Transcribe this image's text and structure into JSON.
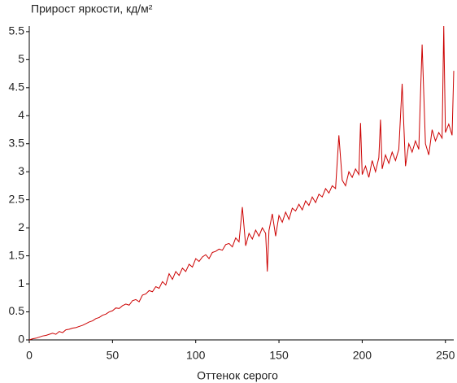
{
  "chart_data": {
    "type": "line",
    "title": "Прирост яркости, кд/м²",
    "x_label": "Оттенок серого",
    "x": [
      0,
      2,
      4,
      6,
      8,
      10,
      12,
      14,
      16,
      18,
      20,
      22,
      24,
      26,
      28,
      30,
      32,
      34,
      36,
      38,
      40,
      42,
      44,
      46,
      48,
      50,
      52,
      54,
      56,
      58,
      60,
      62,
      64,
      66,
      68,
      70,
      72,
      74,
      76,
      78,
      80,
      82,
      84,
      86,
      88,
      90,
      92,
      94,
      96,
      98,
      100,
      102,
      104,
      106,
      108,
      110,
      112,
      114,
      116,
      118,
      120,
      122,
      124,
      126,
      128,
      130,
      132,
      134,
      136,
      138,
      140,
      142,
      143,
      144,
      146,
      148,
      150,
      152,
      154,
      156,
      158,
      160,
      162,
      164,
      166,
      168,
      170,
      172,
      174,
      176,
      178,
      180,
      182,
      184,
      186,
      188,
      190,
      192,
      194,
      196,
      198,
      199,
      200,
      202,
      204,
      206,
      208,
      210,
      211,
      212,
      214,
      216,
      218,
      220,
      222,
      224,
      226,
      228,
      230,
      232,
      234,
      235,
      236,
      238,
      240,
      242,
      244,
      246,
      248,
      249,
      250,
      252,
      254,
      255
    ],
    "series": [
      {
        "name": null,
        "color": "#cc0000",
        "values": [
          0.0,
          0.02,
          0.03,
          0.05,
          0.07,
          0.08,
          0.1,
          0.12,
          0.1,
          0.15,
          0.13,
          0.18,
          0.19,
          0.21,
          0.22,
          0.24,
          0.26,
          0.29,
          0.32,
          0.34,
          0.38,
          0.4,
          0.44,
          0.46,
          0.5,
          0.52,
          0.57,
          0.56,
          0.61,
          0.64,
          0.62,
          0.7,
          0.72,
          0.68,
          0.8,
          0.82,
          0.88,
          0.86,
          0.95,
          0.92,
          1.04,
          0.98,
          1.18,
          1.08,
          1.22,
          1.15,
          1.28,
          1.22,
          1.35,
          1.3,
          1.45,
          1.4,
          1.48,
          1.52,
          1.45,
          1.56,
          1.58,
          1.62,
          1.6,
          1.7,
          1.72,
          1.66,
          1.82,
          1.75,
          2.37,
          1.68,
          1.9,
          1.8,
          1.96,
          1.85,
          2.0,
          1.9,
          1.22,
          1.95,
          2.25,
          1.85,
          2.22,
          2.1,
          2.28,
          2.15,
          2.35,
          2.3,
          2.42,
          2.32,
          2.48,
          2.4,
          2.55,
          2.45,
          2.6,
          2.55,
          2.7,
          2.62,
          2.75,
          2.7,
          3.65,
          2.85,
          2.75,
          3.0,
          2.9,
          3.05,
          2.95,
          3.87,
          2.95,
          3.1,
          2.9,
          3.2,
          3.0,
          3.25,
          3.93,
          3.05,
          3.3,
          3.15,
          3.35,
          3.2,
          3.4,
          4.57,
          3.1,
          3.5,
          3.35,
          3.55,
          3.4,
          4.35,
          5.27,
          3.5,
          3.3,
          3.75,
          3.55,
          3.7,
          3.6,
          5.6,
          3.7,
          3.85,
          3.65,
          4.8
        ]
      }
    ],
    "xlim": [
      0,
      255
    ],
    "xticks": [
      0,
      50,
      100,
      150,
      200,
      250
    ],
    "ylim": [
      0,
      5.6
    ],
    "yticks": [
      0,
      0.5,
      1,
      1.5,
      2,
      2.5,
      3,
      3.5,
      4,
      4.5,
      5,
      5.5
    ]
  }
}
